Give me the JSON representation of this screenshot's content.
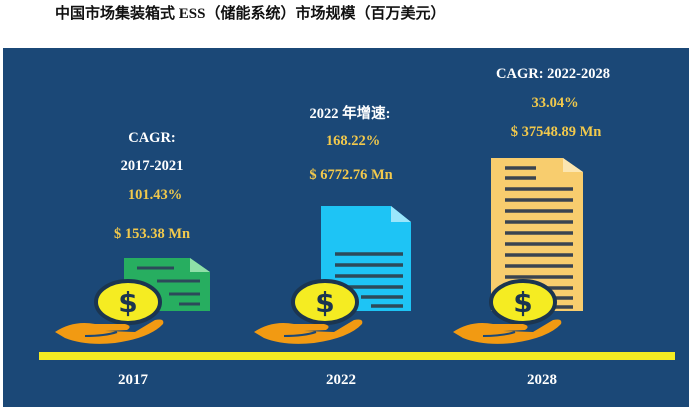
{
  "title": "中国市场集装箱式 ESS（储能系统）市场规模（百万美元）",
  "columns": [
    {
      "year": "2017",
      "lines": [
        "CAGR:",
        "2017-2021",
        "101.43%",
        "$ 153.38 Mn"
      ],
      "doc_color": "#27ae60"
    },
    {
      "year": "2022",
      "lines": [
        "2022 年增速:",
        "168.22%",
        "$ 6772.76 Mn"
      ],
      "doc_color": "#1ec4f5"
    },
    {
      "year": "2028",
      "lines": [
        "CAGR: 2022-2028",
        "33.04%",
        "$ 37548.89 Mn"
      ],
      "doc_color": "#f8cd6e"
    }
  ],
  "colors": {
    "background": "#1b4877",
    "baseline": "#f5ec22",
    "coin": "#f5ec22",
    "hand": "#f29a12",
    "label_highlight": "#f2c94c"
  }
}
